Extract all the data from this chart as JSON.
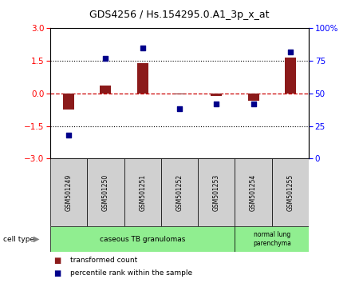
{
  "title": "GDS4256 / Hs.154295.0.A1_3p_x_at",
  "samples": [
    "GSM501249",
    "GSM501250",
    "GSM501251",
    "GSM501252",
    "GSM501253",
    "GSM501254",
    "GSM501255"
  ],
  "transformed_count": [
    -0.75,
    0.35,
    1.4,
    -0.03,
    -0.12,
    -0.35,
    1.65
  ],
  "percentile_rank": [
    18,
    77,
    85,
    38,
    42,
    42,
    82
  ],
  "ylim_left": [
    -3,
    3
  ],
  "ylim_right": [
    0,
    100
  ],
  "yticks_left": [
    -3,
    -1.5,
    0,
    1.5,
    3
  ],
  "yticks_right": [
    0,
    25,
    50,
    75,
    100
  ],
  "hlines_y": [
    -1.5,
    0,
    1.5
  ],
  "bar_color": "#8B1A1A",
  "dot_color": "#00008B",
  "zero_line_color": "#cc0000",
  "legend_items": [
    {
      "label": "transformed count",
      "color": "#8B1A1A"
    },
    {
      "label": "percentile rank within the sample",
      "color": "#00008B"
    }
  ],
  "sample_box_color": "#d0d0d0",
  "group1_label": "caseous TB granulomas",
  "group2_label": "normal lung\nparenchyma",
  "group_color": "#90EE90",
  "cell_type_label": "cell type"
}
